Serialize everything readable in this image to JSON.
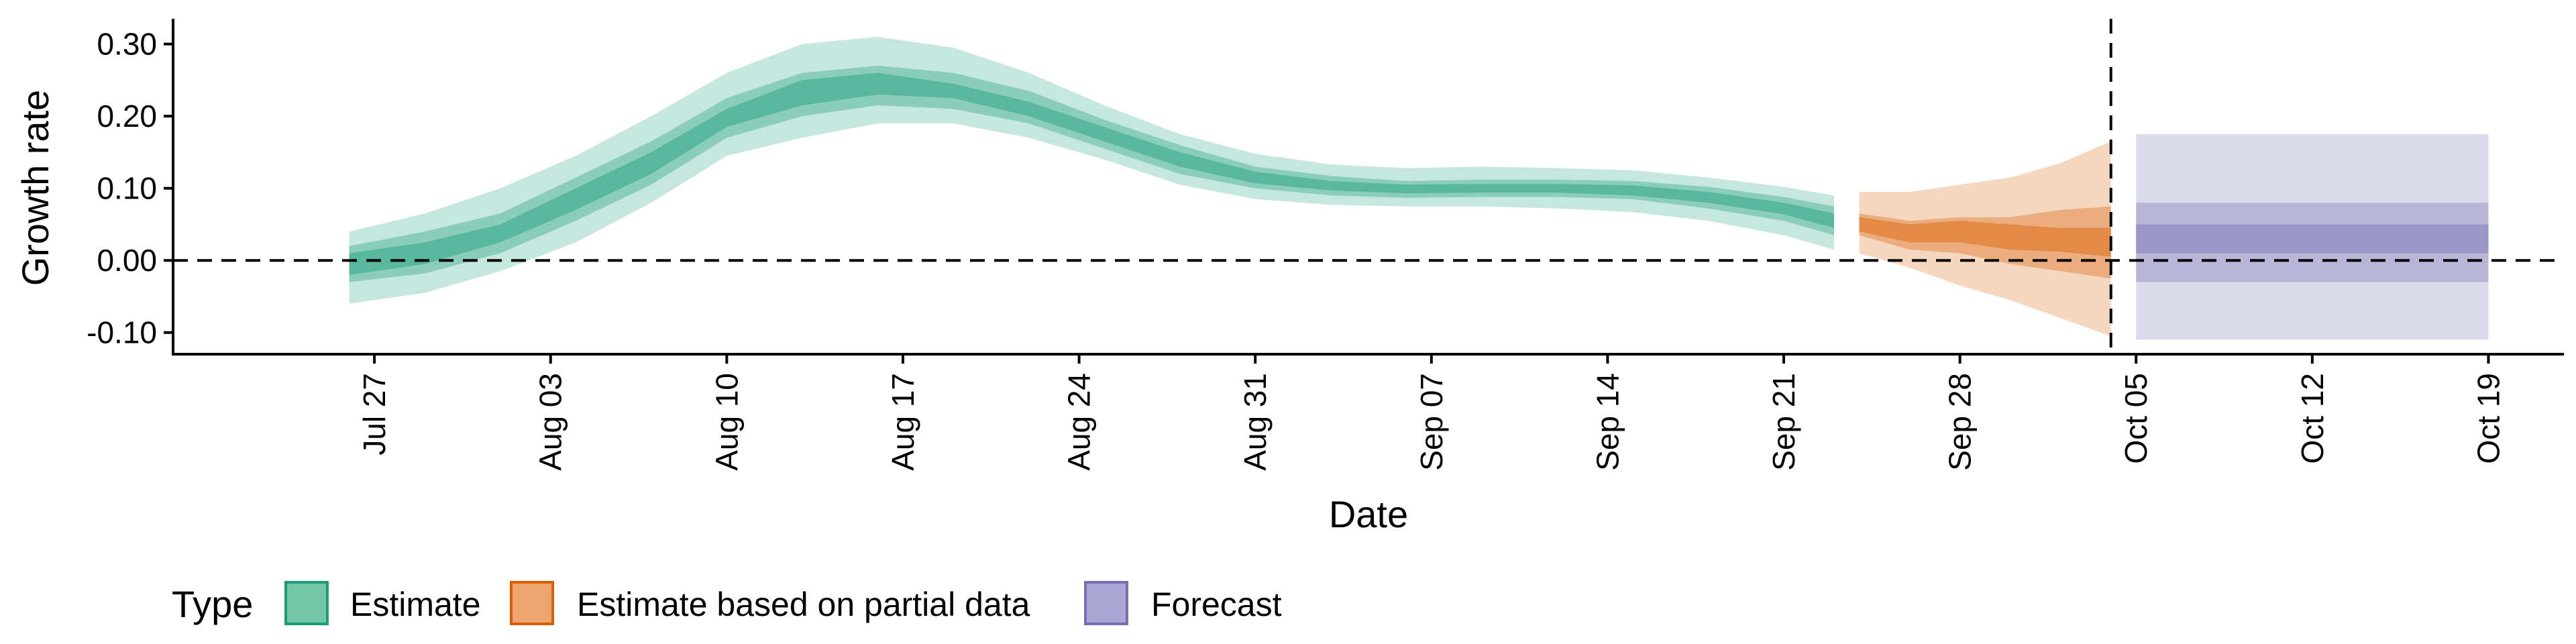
{
  "chart_data": {
    "type": "area",
    "xlabel": "Date",
    "ylabel": "Growth rate",
    "x_range": [
      "2020-07-19",
      "2020-10-22"
    ],
    "ylim": [
      -0.13,
      0.335
    ],
    "y_ticks": [
      -0.1,
      0.0,
      0.1,
      0.2,
      0.3
    ],
    "y_tick_labels": [
      "-0.10",
      "0.00",
      "0.10",
      "0.20",
      "0.30"
    ],
    "x_ticks": [
      "2020-07-27",
      "2020-08-03",
      "2020-08-10",
      "2020-08-17",
      "2020-08-24",
      "2020-08-31",
      "2020-09-07",
      "2020-09-14",
      "2020-09-21",
      "2020-09-28",
      "2020-10-05",
      "2020-10-12",
      "2020-10-19"
    ],
    "x_tick_labels": [
      "Jul 27",
      "Aug 03",
      "Aug 10",
      "Aug 17",
      "Aug 24",
      "Aug 31",
      "Sep 07",
      "Sep 14",
      "Sep 21",
      "Sep 28",
      "Oct 05",
      "Oct 12",
      "Oct 19"
    ],
    "hlines": [
      0.0
    ],
    "vline_date": "2020-10-04",
    "grid": false,
    "legend": {
      "title": "Type",
      "position": "bottom-left",
      "entries": [
        {
          "label": "Estimate",
          "fill": "#74c7a6",
          "stroke": "#1b9e77"
        },
        {
          "label": "Estimate based on partial data",
          "fill": "#eea46e",
          "stroke": "#d95f02"
        },
        {
          "label": "Forecast",
          "fill": "#aaa6d4",
          "stroke": "#7570b3"
        }
      ]
    },
    "series": [
      {
        "type_label": "Estimate",
        "color": "#1b9e77",
        "dates": [
          "2020-07-26",
          "2020-07-29",
          "2020-08-01",
          "2020-08-04",
          "2020-08-07",
          "2020-08-10",
          "2020-08-13",
          "2020-08-16",
          "2020-08-19",
          "2020-08-22",
          "2020-08-25",
          "2020-08-28",
          "2020-08-31",
          "2020-09-03",
          "2020-09-06",
          "2020-09-09",
          "2020-09-12",
          "2020-09-15",
          "2020-09-18",
          "2020-09-21",
          "2020-09-23"
        ],
        "median": [
          -0.005,
          0.01,
          0.035,
          0.085,
          0.135,
          0.2,
          0.235,
          0.245,
          0.235,
          0.21,
          0.175,
          0.14,
          0.115,
          0.103,
          0.098,
          0.1,
          0.1,
          0.098,
          0.088,
          0.072,
          0.055
        ],
        "lower_20": [
          -0.02,
          -0.005,
          0.025,
          0.07,
          0.12,
          0.185,
          0.215,
          0.23,
          0.225,
          0.2,
          0.165,
          0.13,
          0.107,
          0.097,
          0.093,
          0.094,
          0.094,
          0.09,
          0.08,
          0.064,
          0.045
        ],
        "upper_20": [
          0.01,
          0.025,
          0.05,
          0.1,
          0.15,
          0.21,
          0.25,
          0.26,
          0.245,
          0.22,
          0.185,
          0.15,
          0.123,
          0.11,
          0.105,
          0.106,
          0.106,
          0.104,
          0.095,
          0.08,
          0.065
        ],
        "lower_50": [
          -0.03,
          -0.018,
          0.01,
          0.055,
          0.105,
          0.17,
          0.2,
          0.215,
          0.21,
          0.19,
          0.155,
          0.12,
          0.1,
          0.09,
          0.087,
          0.088,
          0.088,
          0.085,
          0.072,
          0.055,
          0.035
        ],
        "upper_50": [
          0.02,
          0.04,
          0.065,
          0.115,
          0.165,
          0.225,
          0.26,
          0.27,
          0.26,
          0.235,
          0.195,
          0.16,
          0.13,
          0.117,
          0.11,
          0.112,
          0.112,
          0.11,
          0.102,
          0.088,
          0.075
        ],
        "lower_90": [
          -0.06,
          -0.045,
          -0.015,
          0.025,
          0.08,
          0.145,
          0.17,
          0.19,
          0.19,
          0.17,
          0.14,
          0.105,
          0.085,
          0.077,
          0.075,
          0.075,
          0.072,
          0.067,
          0.055,
          0.035,
          0.015
        ],
        "upper_90": [
          0.04,
          0.065,
          0.1,
          0.145,
          0.2,
          0.26,
          0.3,
          0.31,
          0.295,
          0.26,
          0.215,
          0.175,
          0.148,
          0.133,
          0.128,
          0.13,
          0.128,
          0.125,
          0.115,
          0.102,
          0.09
        ]
      },
      {
        "type_label": "Estimate based on partial data",
        "color": "#d95f02",
        "dates": [
          "2020-09-24",
          "2020-09-26",
          "2020-09-28",
          "2020-09-30",
          "2020-10-02",
          "2020-10-04"
        ],
        "median": [
          0.052,
          0.035,
          0.045,
          0.035,
          0.03,
          0.025
        ],
        "lower_20": [
          0.04,
          0.025,
          0.025,
          0.015,
          0.012,
          0.005
        ],
        "upper_20": [
          0.06,
          0.05,
          0.055,
          0.05,
          0.045,
          0.045
        ],
        "lower_50": [
          0.035,
          0.015,
          0.01,
          -0.005,
          -0.015,
          -0.025
        ],
        "upper_50": [
          0.065,
          0.055,
          0.06,
          0.06,
          0.07,
          0.075
        ],
        "lower_90": [
          0.01,
          -0.01,
          -0.035,
          -0.055,
          -0.08,
          -0.105
        ],
        "upper_90": [
          0.095,
          0.095,
          0.105,
          0.115,
          0.135,
          0.165
        ]
      },
      {
        "type_label": "Forecast",
        "color": "#7570b3",
        "dates": [
          "2020-10-05",
          "2020-10-19"
        ],
        "median": [
          0.03,
          0.03
        ],
        "lower_20": [
          0.01,
          0.01
        ],
        "upper_20": [
          0.05,
          0.05
        ],
        "lower_50": [
          -0.03,
          -0.03
        ],
        "upper_50": [
          0.08,
          0.08
        ],
        "lower_90": [
          -0.11,
          -0.11
        ],
        "upper_90": [
          0.175,
          0.175
        ]
      }
    ]
  }
}
